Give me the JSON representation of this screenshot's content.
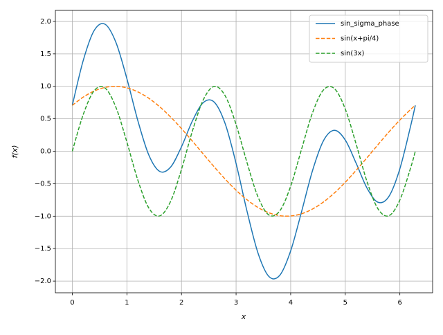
{
  "chart_data": {
    "type": "line",
    "xlabel": "x",
    "ylabel": "f(x)",
    "x": [
      0,
      0.2,
      0.4,
      0.6,
      0.8,
      1.0,
      1.2,
      1.4,
      1.6,
      1.8,
      2.0,
      2.2,
      2.4,
      2.6,
      2.8,
      3.0,
      3.2,
      3.4,
      3.6,
      3.8,
      4.0,
      4.2,
      4.4,
      4.6,
      4.8,
      5.0,
      5.2,
      5.4,
      5.6,
      5.8,
      6.0,
      6.2,
      6.283
    ],
    "series": [
      {
        "name": "sin_sigma_phase",
        "color": "#1f77b4",
        "style": "solid",
        "values": [
          0.707,
          1.398,
          1.859,
          1.957,
          1.675,
          1.118,
          0.473,
          -0.055,
          -0.31,
          -0.245,
          0.069,
          0.467,
          0.75,
          0.757,
          0.425,
          -0.188,
          -0.922,
          -1.564,
          -1.928,
          -1.911,
          -1.534,
          -0.929,
          -0.298,
          0.162,
          0.323,
          0.173,
          -0.186,
          -0.57,
          -0.786,
          -0.695,
          -0.27,
          0.398,
          0.707
        ]
      },
      {
        "name": "sin(x+pi/4)",
        "color": "#ff7f0e",
        "style": "dashed",
        "values": [
          0.707,
          0.834,
          0.927,
          0.983,
          1.0,
          0.977,
          0.915,
          0.817,
          0.686,
          0.528,
          0.349,
          0.156,
          -0.044,
          -0.241,
          -0.429,
          -0.6,
          -0.747,
          -0.865,
          -0.947,
          -0.992,
          -0.997,
          -0.963,
          -0.89,
          -0.782,
          -0.643,
          -0.478,
          -0.293,
          -0.098,
          0.102,
          0.298,
          0.481,
          0.646,
          0.707
        ]
      },
      {
        "name": "sin(3x)",
        "color": "#2ca02c",
        "style": "dashed",
        "values": [
          0,
          0.565,
          0.932,
          0.974,
          0.675,
          0.141,
          -0.443,
          -0.872,
          -0.996,
          -0.773,
          -0.279,
          0.312,
          0.794,
          0.999,
          0.855,
          0.412,
          -0.174,
          -0.7,
          -0.981,
          -0.919,
          -0.537,
          0.034,
          0.592,
          0.944,
          0.966,
          0.65,
          0.108,
          -0.472,
          -0.888,
          -0.993,
          -0.751,
          -0.248,
          0
        ]
      }
    ],
    "xlim": [
      -0.31,
      6.6
    ],
    "xticks": [
      0,
      1,
      2,
      3,
      4,
      5,
      6
    ],
    "ylim": [
      -2.18,
      2.17
    ],
    "yticks": [
      {
        "value": -2.0,
        "label": "−2.0"
      },
      {
        "value": -1.5,
        "label": "−1.5"
      },
      {
        "value": -1.0,
        "label": "−1.0"
      },
      {
        "value": -0.5,
        "label": "−0.5"
      },
      {
        "value": 0.0,
        "label": "0.0"
      },
      0.5,
      {
        "value": 1.0,
        "label": "1.0"
      },
      1.5,
      {
        "value": 2.0,
        "label": "2.0"
      }
    ],
    "grid": true,
    "legend": "upper right"
  }
}
